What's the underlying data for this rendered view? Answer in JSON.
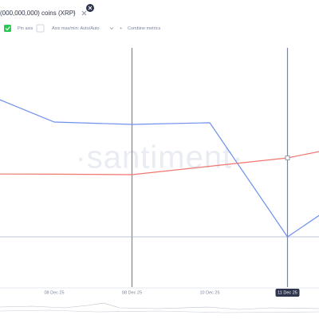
{
  "chart_data": {
    "type": "line",
    "title": "(000,000,000) coins (XRP)",
    "controls": {
      "pin": "Pin axis",
      "axis": "Axis max/min: Auto/Auto",
      "combine": "Combine metrics"
    },
    "watermark": "·santiment·",
    "categories": [
      null,
      "08 Dec 25",
      "08 Dec 25",
      "10 Dec 25",
      "11 Dec 25",
      null
    ],
    "series": [
      {
        "color": "#6f8ff0",
        "values": [
          82.3,
          69,
          68,
          68.7,
          21,
          43
        ]
      },
      {
        "color": "#f0766e",
        "values": [
          47.3,
          47.2,
          47,
          50.5,
          54,
          60.5
        ]
      }
    ],
    "ylim": [
      0,
      100
    ]
  }
}
